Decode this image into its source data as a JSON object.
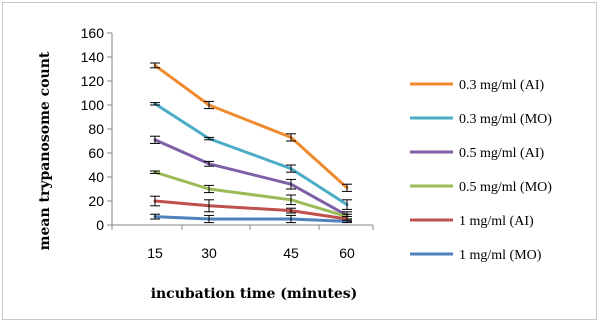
{
  "chart_data": {
    "type": "line",
    "title": "",
    "xlabel": "incubation time (minutes)",
    "ylabel": "mean trypanosome count",
    "categories": [
      "15",
      "30",
      "45",
      "60"
    ],
    "ylim": [
      0,
      160
    ],
    "yticks": [
      0,
      20,
      40,
      60,
      80,
      100,
      120,
      140,
      160
    ],
    "grid": false,
    "legend_position": "right",
    "series": [
      {
        "name": "0.3 mg/ml (AI)",
        "color": "#f08a2e",
        "values": [
          133,
          100,
          73,
          31
        ],
        "errors": [
          2,
          3,
          3,
          3
        ]
      },
      {
        "name": "0.3 mg/ml (MO)",
        "color": "#4bacc6",
        "values": [
          101,
          72,
          47,
          17
        ],
        "errors": [
          1,
          1,
          3,
          4
        ]
      },
      {
        "name": "0.5 mg/ml (AI)",
        "color": "#7f5fa8",
        "values": [
          71,
          51,
          34,
          8
        ],
        "errors": [
          3,
          2,
          4,
          3
        ]
      },
      {
        "name": "0.5 mg/ml (MO)",
        "color": "#9bbb59",
        "values": [
          44,
          30,
          21,
          7
        ],
        "errors": [
          1,
          3,
          4,
          2
        ]
      },
      {
        "name": "1 mg/ml (AI)",
        "color": "#c0504d",
        "values": [
          20,
          16,
          12,
          5
        ],
        "errors": [
          4,
          5,
          2,
          2
        ]
      },
      {
        "name": "1 mg/ml (MO)",
        "color": "#4f81bd",
        "values": [
          7,
          5,
          5,
          3
        ],
        "errors": [
          2,
          3,
          3,
          1
        ]
      }
    ]
  }
}
